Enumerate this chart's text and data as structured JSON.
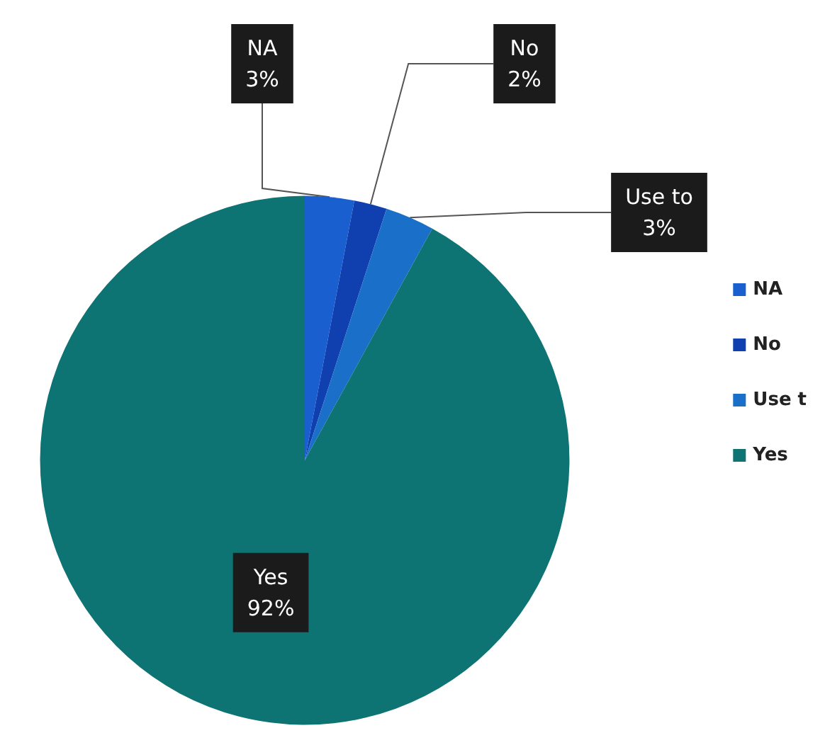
{
  "chart_data": {
    "type": "pie",
    "categories": [
      "NA",
      "No",
      "Use t",
      "Yes"
    ],
    "values": [
      3,
      2,
      3,
      92
    ],
    "value_labels": [
      "NA\n3%",
      "No\n2%",
      "Use to\n3%",
      "Yes\n92%"
    ],
    "colors": [
      "#1a5fd0",
      "#1040b0",
      "#1a70c8",
      "#0e7373"
    ],
    "legend": "right"
  }
}
